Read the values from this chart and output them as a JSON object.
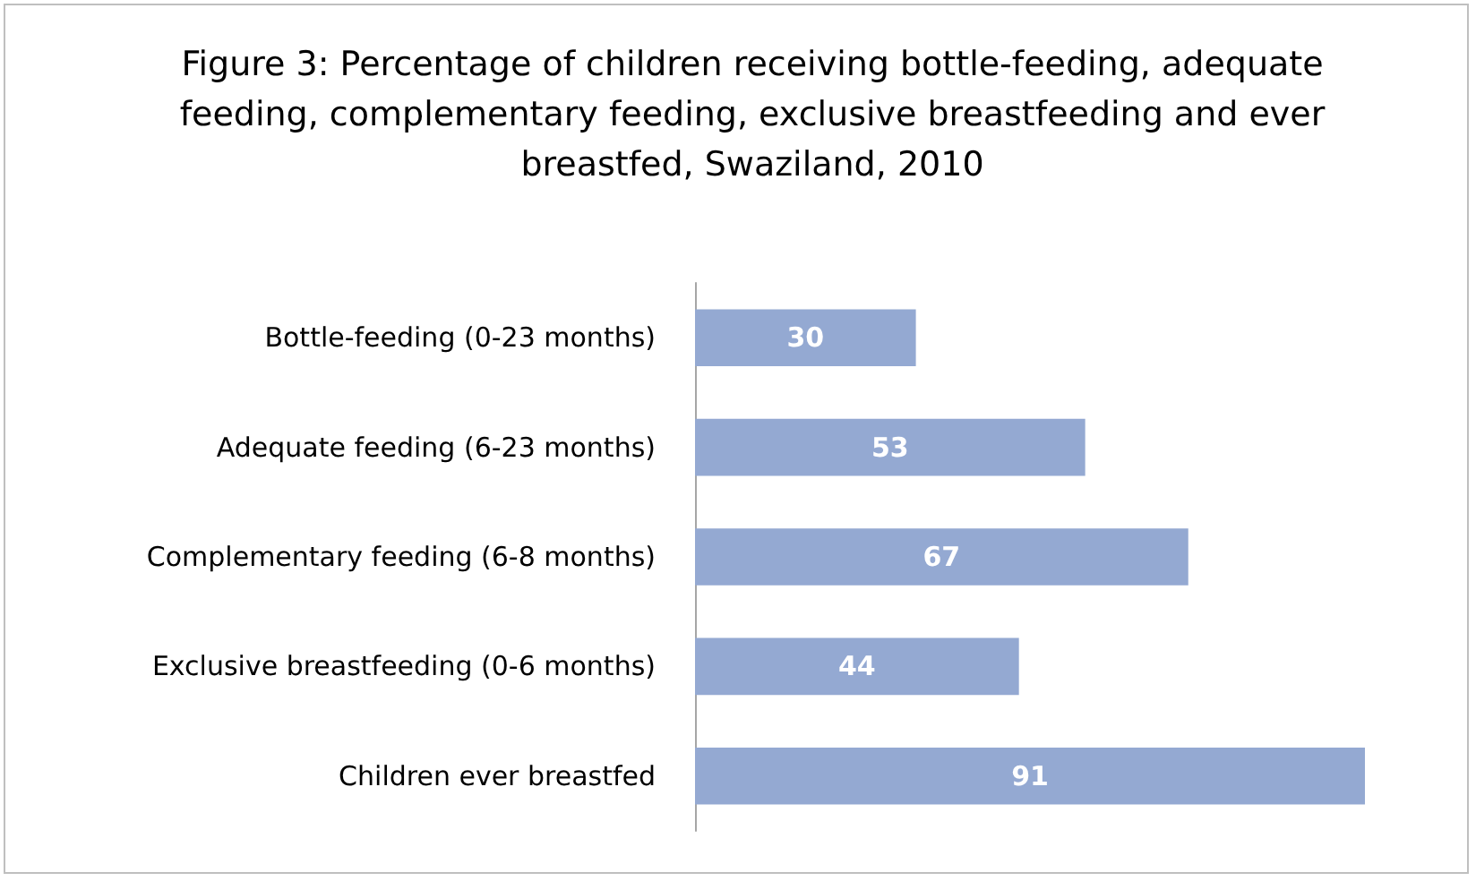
{
  "chart_data": {
    "type": "bar",
    "orientation": "horizontal",
    "title": "Figure 3: Percentage of children receiving bottle-feeding, adequate feeding, complementary feeding, exclusive breastfeeding and ever breastfed, Swaziland, 2010",
    "categories": [
      "Bottle-feeding (0-23 months)",
      "Adequate feeding (6-23 months)",
      "Complementary feeding (6-8 months)",
      "Exclusive breastfeeding (0-6 months)",
      "Children ever breastfed"
    ],
    "values": [
      30,
      53,
      67,
      44,
      91
    ],
    "color": "#94a9d2",
    "data_labels": true
  }
}
